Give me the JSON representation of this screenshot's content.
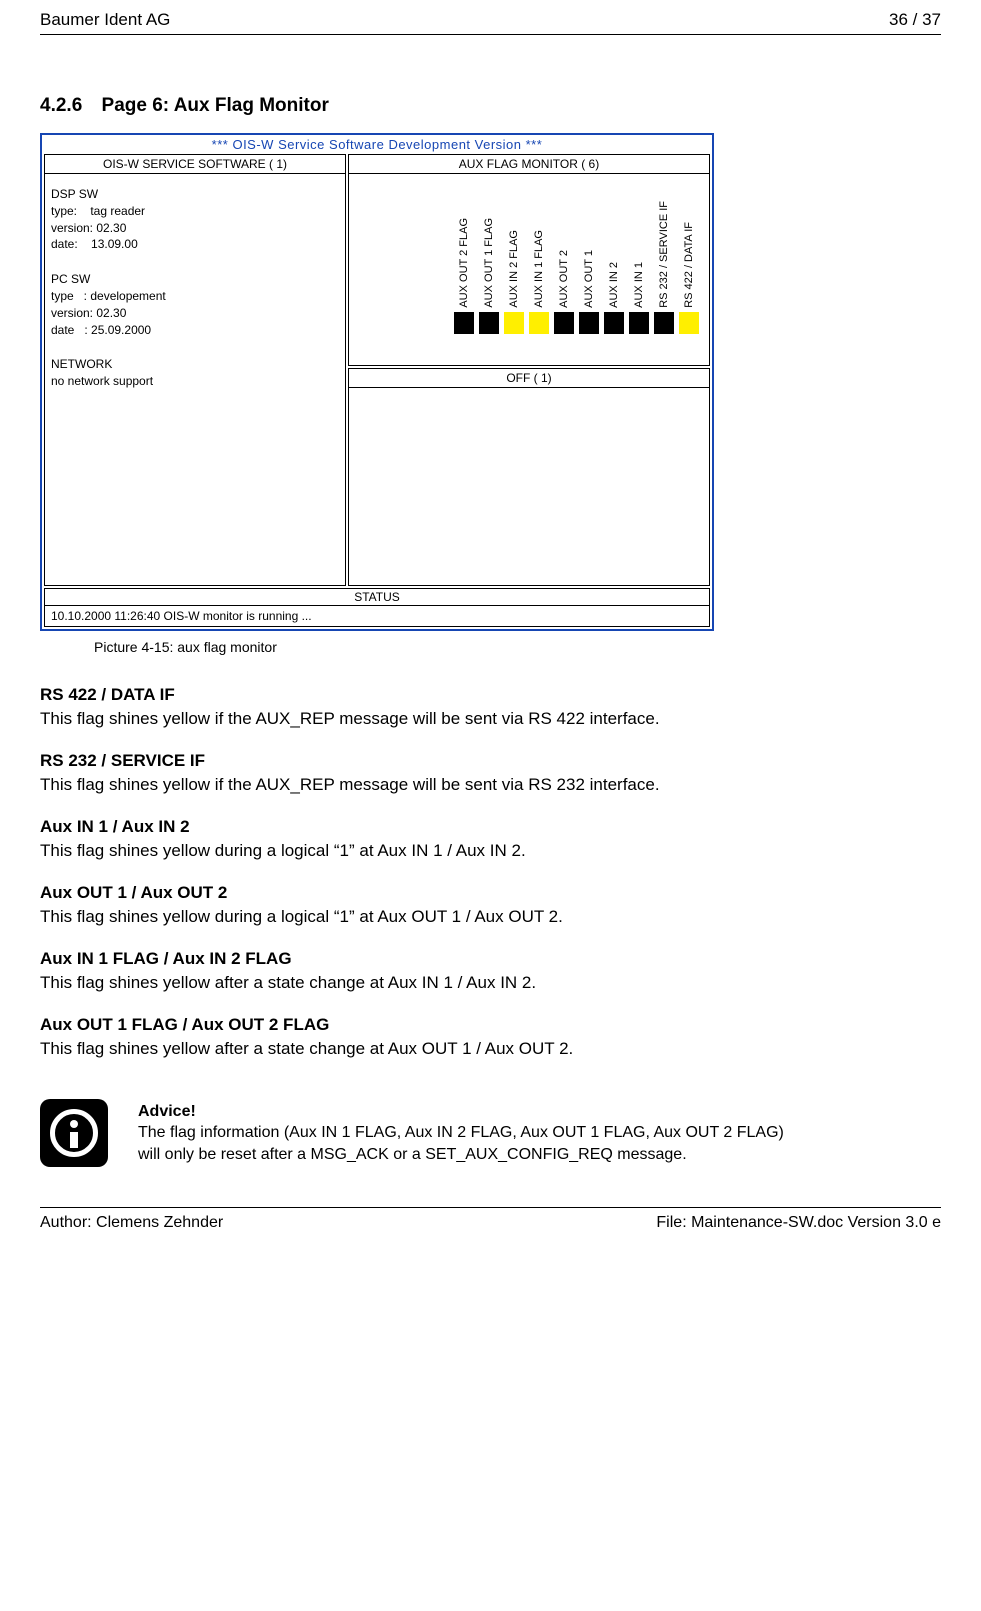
{
  "header": {
    "company": "Baumer Ident AG",
    "page_num": "36 / 37"
  },
  "section": {
    "number": "4.2.6",
    "title": "Page 6: Aux Flag Monitor"
  },
  "window": {
    "title": "*** OIS-W Service Software Development Version ***",
    "border_color": "#1646b3",
    "left_panel": {
      "title": "OIS-W SERVICE SOFTWARE ( 1)",
      "dsp_label": "DSP SW",
      "dsp_type": "type:    tag reader",
      "dsp_ver": "version: 02.30",
      "dsp_date": "date:    13.09.00",
      "pc_label": "PC SW",
      "pc_type": "type   : developement",
      "pc_ver": "version: 02.30",
      "pc_date": "date   : 25.09.2000",
      "net_label": "NETWORK",
      "net_text": "no network support"
    },
    "aux_panel": {
      "title": "AUX FLAG MONITOR ( 6)",
      "columns": [
        {
          "label": "RS 422 / DATA IF",
          "color": "#ffef00"
        },
        {
          "label": "RS 232 / SERVICE IF",
          "color": "#000000"
        },
        {
          "label": "AUX IN 1",
          "color": "#000000"
        },
        {
          "label": "AUX IN 2",
          "color": "#000000"
        },
        {
          "label": "AUX OUT 1",
          "color": "#000000"
        },
        {
          "label": "AUX OUT 2",
          "color": "#000000"
        },
        {
          "label": "AUX IN 1 FLAG",
          "color": "#ffef00"
        },
        {
          "label": "AUX IN 2 FLAG",
          "color": "#ffef00"
        },
        {
          "label": "AUX OUT 1 FLAG",
          "color": "#000000"
        },
        {
          "label": "AUX OUT 2 FLAG",
          "color": "#000000"
        }
      ]
    },
    "off_panel": {
      "title": "OFF ( 1)"
    },
    "status": {
      "title": "STATUS",
      "text": "10.10.2000  11:26:40    OIS-W monitor is running ..."
    }
  },
  "caption": "Picture 4-15: aux flag monitor",
  "definitions": [
    {
      "title": "RS 422 / DATA IF",
      "body": "This flag shines yellow if the AUX_REP message will be sent via RS 422 interface."
    },
    {
      "title": "RS 232 / SERVICE IF",
      "body": "This flag shines yellow if the AUX_REP message will be sent via RS 232 interface."
    },
    {
      "title": "Aux IN 1 / Aux IN 2",
      "body": "This flag shines yellow during a logical “1” at Aux IN 1 / Aux IN 2."
    },
    {
      "title": "Aux OUT 1 / Aux OUT 2",
      "body": "This flag shines yellow during a logical “1” at Aux OUT 1 / Aux OUT 2."
    },
    {
      "title": "Aux IN 1 FLAG / Aux IN 2 FLAG",
      "body": "This flag shines yellow after a state change at Aux IN 1 / Aux IN 2."
    },
    {
      "title": "Aux OUT 1 FLAG / Aux OUT 2 FLAG",
      "body": "This flag shines yellow after a state change at Aux OUT 1 / Aux OUT 2."
    }
  ],
  "advice": {
    "label": "Advice!",
    "line1": "The flag information (Aux IN 1 FLAG, Aux IN 2 FLAG, Aux OUT 1 FLAG, Aux OUT 2 FLAG)",
    "line2": "will only be reset after a MSG_ACK or a SET_AUX_CONFIG_REQ message."
  },
  "footer": {
    "author": "Author: Clemens Zehnder",
    "file": "File: Maintenance-SW.doc Version 3.0 e"
  }
}
